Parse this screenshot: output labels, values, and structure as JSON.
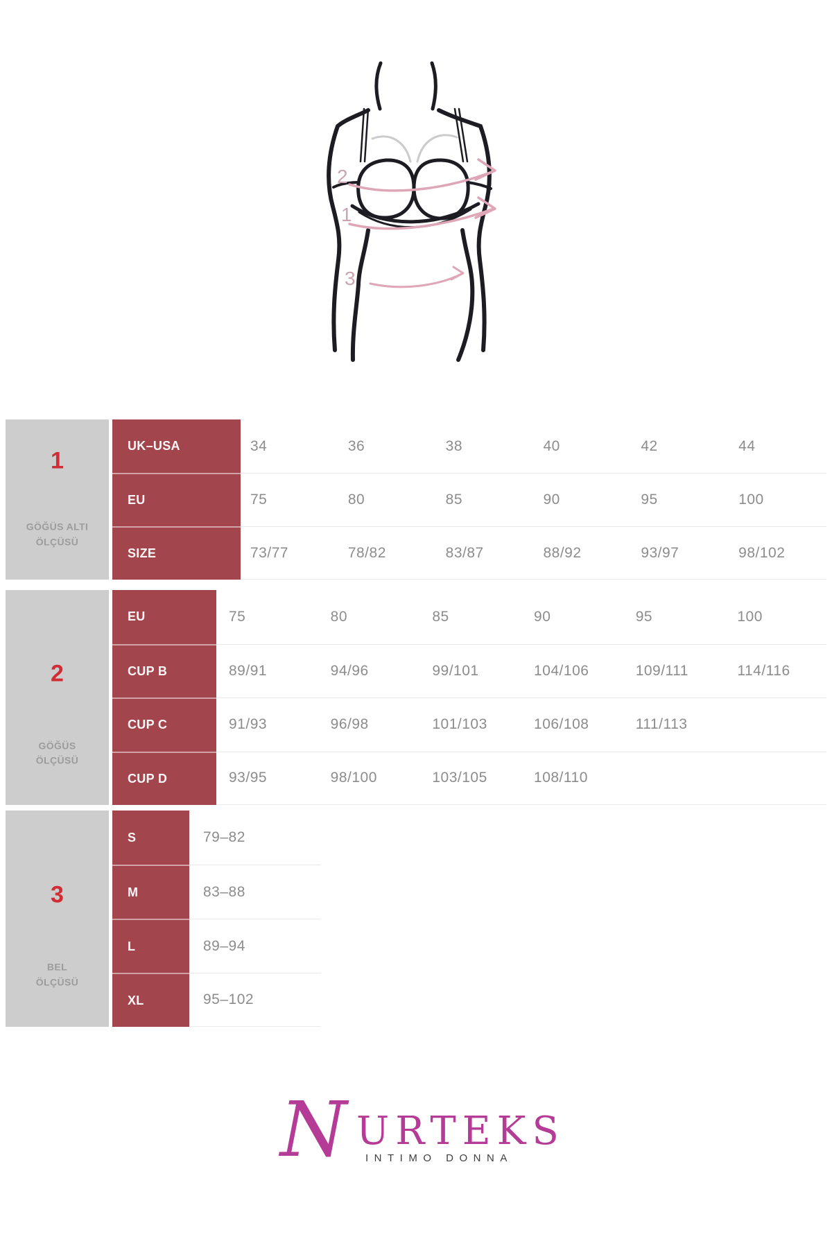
{
  "figure": {
    "measure_labels": [
      "2",
      "1",
      "3"
    ]
  },
  "sections": [
    {
      "number": "1",
      "title_lines": [
        "GÖĞÜS ALTI",
        "ÖLÇÜSÜ"
      ],
      "rows": [
        {
          "header": "UK–USA",
          "values": [
            "34",
            "36",
            "38",
            "40",
            "42",
            "44"
          ]
        },
        {
          "header": "EU",
          "values": [
            "75",
            "80",
            "85",
            "90",
            "95",
            "100"
          ]
        },
        {
          "header": "SIZE",
          "values": [
            "73/77",
            "78/82",
            "83/87",
            "88/92",
            "93/97",
            "98/102"
          ]
        }
      ]
    },
    {
      "number": "2",
      "title_lines": [
        "GÖĞÜS",
        "ÖLÇÜSÜ"
      ],
      "rows": [
        {
          "header": "EU",
          "values": [
            "75",
            "80",
            "85",
            "90",
            "95",
            "100"
          ]
        },
        {
          "header": "CUP B",
          "values": [
            "89/91",
            "94/96",
            "99/101",
            "104/106",
            "109/111",
            "114/116"
          ]
        },
        {
          "header": "CUP C",
          "values": [
            "91/93",
            "96/98",
            "101/103",
            "106/108",
            "111/113",
            ""
          ]
        },
        {
          "header": "CUP D",
          "values": [
            "93/95",
            "98/100",
            "103/105",
            "108/110",
            "",
            ""
          ]
        }
      ]
    },
    {
      "number": "3",
      "title_lines": [
        "BEL",
        "ÖLÇÜSÜ"
      ],
      "rows": [
        {
          "header": "S",
          "values": [
            "79–82"
          ]
        },
        {
          "header": "M",
          "values": [
            "83–88"
          ]
        },
        {
          "header": "L",
          "values": [
            "89–94"
          ]
        },
        {
          "header": "XL",
          "values": [
            "95–102"
          ]
        }
      ]
    }
  ],
  "logo": {
    "brand_initial": "N",
    "brand_rest": "URTEKS",
    "tagline": "INTIMO DONNA"
  },
  "colors": {
    "header_red": "#a3454c",
    "accent_number_red": "#d02d34",
    "side_cell_grey": "#cdcdcd",
    "value_text_grey": "#8c8c8c",
    "side_title_grey": "#9c9c9c",
    "divider_grey": "#e9e9e9",
    "logo_magenta": "#b43c96",
    "tagline_dark": "#3e3e3e",
    "arrow_pink": "#dfa6b7",
    "figure_line_black": "#1c1c22"
  }
}
